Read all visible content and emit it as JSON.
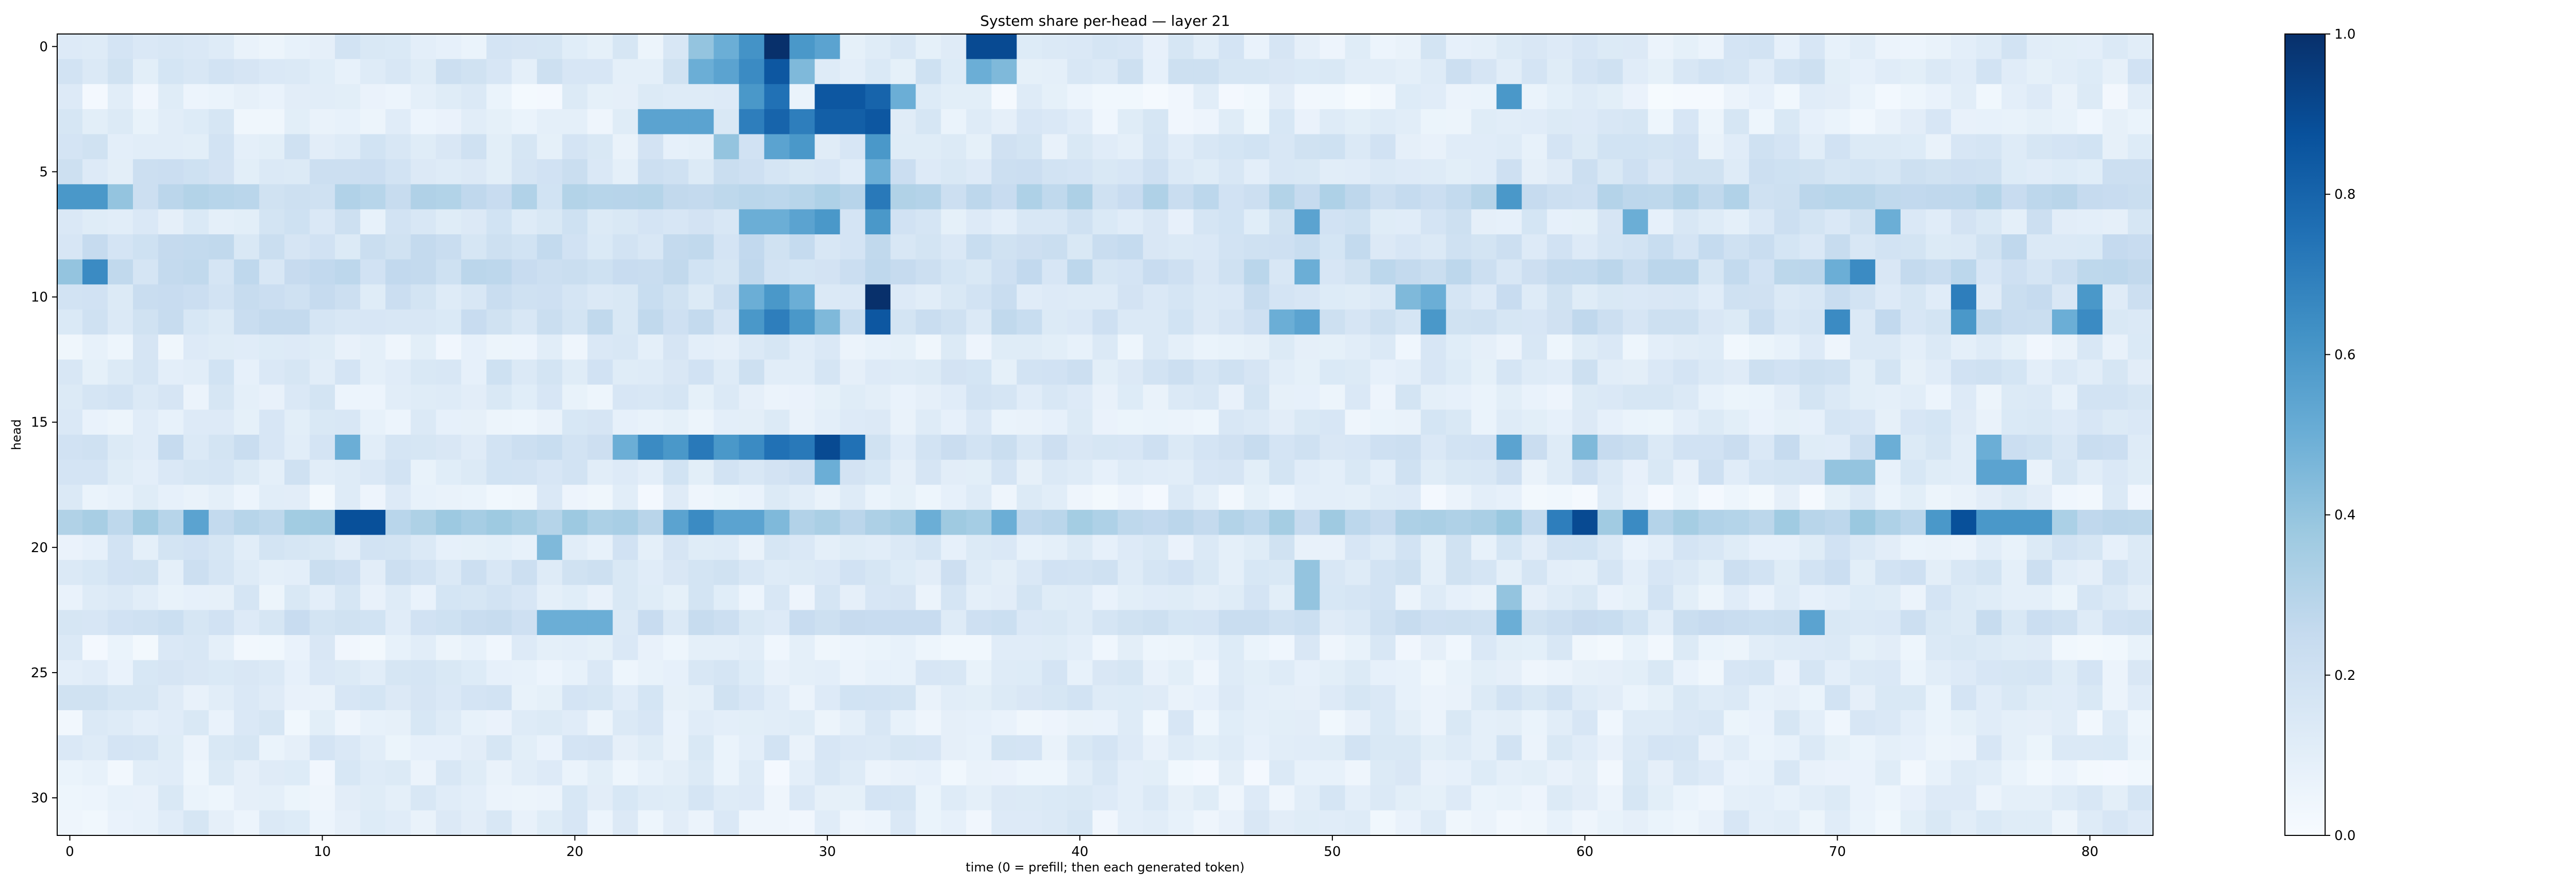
{
  "chart_data": {
    "type": "heatmap",
    "title": "System share per-head — layer 21",
    "xlabel": "time (0 = prefill; then each generated token)",
    "ylabel": "head",
    "n_cols": 84,
    "n_rows": 32,
    "xlim": [
      -0.5,
      82.5
    ],
    "ylim": [
      31.5,
      -0.5
    ],
    "x_ticks": [
      0,
      10,
      20,
      30,
      40,
      50,
      60,
      70,
      80
    ],
    "y_ticks": [
      0,
      5,
      10,
      15,
      20,
      25,
      30
    ],
    "colormap": "Blues",
    "colorbar": {
      "min": 0.0,
      "max": 1.0,
      "ticks": [
        "0.0",
        "0.2",
        "0.4",
        "0.6",
        "0.8",
        "1.0"
      ]
    },
    "colors": {
      "low": "#f7fbff",
      "high": "#08306b",
      "axis": "#000000"
    },
    "base": [
      0.12,
      0.15,
      0.08,
      0.1,
      0.14,
      0.16,
      0.26,
      0.15,
      0.2,
      0.22,
      0.18,
      0.2,
      0.1,
      0.15,
      0.12,
      0.11,
      0.18,
      0.14,
      0.08,
      0.32,
      0.13,
      0.16,
      0.12,
      0.18,
      0.09,
      0.11,
      0.13,
      0.1,
      0.12,
      0.09,
      0.11,
      0.1
    ],
    "hot_cells": [
      [
        0,
        27,
        0.62
      ],
      [
        0,
        28,
        1.0
      ],
      [
        0,
        29,
        0.6
      ],
      [
        0,
        30,
        0.55
      ],
      [
        0,
        36,
        0.9
      ],
      [
        0,
        37,
        0.9
      ],
      [
        0,
        26,
        0.5
      ],
      [
        0,
        25,
        0.4
      ],
      [
        1,
        27,
        0.65
      ],
      [
        1,
        28,
        0.85
      ],
      [
        1,
        26,
        0.55
      ],
      [
        1,
        25,
        0.5
      ],
      [
        1,
        29,
        0.45
      ],
      [
        1,
        36,
        0.5
      ],
      [
        1,
        37,
        0.45
      ],
      [
        2,
        28,
        0.75
      ],
      [
        2,
        30,
        0.85
      ],
      [
        2,
        31,
        0.85
      ],
      [
        2,
        32,
        0.8
      ],
      [
        2,
        27,
        0.6
      ],
      [
        2,
        33,
        0.5
      ],
      [
        2,
        57,
        0.6
      ],
      [
        3,
        28,
        0.8
      ],
      [
        3,
        29,
        0.7
      ],
      [
        3,
        30,
        0.82
      ],
      [
        3,
        31,
        0.82
      ],
      [
        3,
        32,
        0.85
      ],
      [
        3,
        23,
        0.55
      ],
      [
        3,
        24,
        0.55
      ],
      [
        3,
        25,
        0.55
      ],
      [
        3,
        27,
        0.7
      ],
      [
        4,
        28,
        0.55
      ],
      [
        4,
        29,
        0.6
      ],
      [
        4,
        32,
        0.6
      ],
      [
        4,
        26,
        0.4
      ],
      [
        5,
        32,
        0.5
      ],
      [
        6,
        0,
        0.6
      ],
      [
        6,
        1,
        0.6
      ],
      [
        6,
        2,
        0.4
      ],
      [
        6,
        32,
        0.72
      ],
      [
        6,
        57,
        0.6
      ],
      [
        7,
        27,
        0.5
      ],
      [
        7,
        28,
        0.5
      ],
      [
        7,
        29,
        0.55
      ],
      [
        7,
        30,
        0.6
      ],
      [
        7,
        32,
        0.6
      ],
      [
        7,
        49,
        0.55
      ],
      [
        7,
        62,
        0.5
      ],
      [
        7,
        72,
        0.5
      ],
      [
        9,
        1,
        0.65
      ],
      [
        9,
        0,
        0.4
      ],
      [
        9,
        49,
        0.5
      ],
      [
        9,
        70,
        0.5
      ],
      [
        9,
        71,
        0.65
      ],
      [
        10,
        32,
        1.0
      ],
      [
        10,
        28,
        0.6
      ],
      [
        10,
        27,
        0.5
      ],
      [
        10,
        29,
        0.5
      ],
      [
        10,
        75,
        0.7
      ],
      [
        10,
        80,
        0.6
      ],
      [
        10,
        54,
        0.5
      ],
      [
        10,
        53,
        0.45
      ],
      [
        11,
        32,
        0.85
      ],
      [
        11,
        27,
        0.6
      ],
      [
        11,
        28,
        0.7
      ],
      [
        11,
        29,
        0.6
      ],
      [
        11,
        30,
        0.45
      ],
      [
        11,
        48,
        0.5
      ],
      [
        11,
        49,
        0.55
      ],
      [
        11,
        54,
        0.6
      ],
      [
        11,
        70,
        0.65
      ],
      [
        11,
        75,
        0.6
      ],
      [
        11,
        80,
        0.65
      ],
      [
        11,
        79,
        0.5
      ],
      [
        16,
        11,
        0.5
      ],
      [
        16,
        22,
        0.5
      ],
      [
        16,
        23,
        0.65
      ],
      [
        16,
        24,
        0.6
      ],
      [
        16,
        25,
        0.72
      ],
      [
        16,
        26,
        0.6
      ],
      [
        16,
        27,
        0.65
      ],
      [
        16,
        28,
        0.75
      ],
      [
        16,
        29,
        0.72
      ],
      [
        16,
        30,
        0.9
      ],
      [
        16,
        31,
        0.75
      ],
      [
        16,
        57,
        0.55
      ],
      [
        16,
        60,
        0.45
      ],
      [
        16,
        72,
        0.5
      ],
      [
        16,
        76,
        0.5
      ],
      [
        17,
        30,
        0.5
      ],
      [
        17,
        76,
        0.55
      ],
      [
        17,
        77,
        0.55
      ],
      [
        17,
        70,
        0.4
      ],
      [
        17,
        71,
        0.4
      ],
      [
        19,
        11,
        0.88
      ],
      [
        19,
        12,
        0.88
      ],
      [
        19,
        5,
        0.55
      ],
      [
        19,
        24,
        0.55
      ],
      [
        19,
        25,
        0.65
      ],
      [
        19,
        26,
        0.55
      ],
      [
        19,
        27,
        0.55
      ],
      [
        19,
        28,
        0.45
      ],
      [
        19,
        34,
        0.5
      ],
      [
        19,
        37,
        0.5
      ],
      [
        19,
        59,
        0.7
      ],
      [
        19,
        60,
        0.9
      ],
      [
        19,
        62,
        0.65
      ],
      [
        19,
        74,
        0.6
      ],
      [
        19,
        75,
        0.88
      ],
      [
        19,
        76,
        0.6
      ],
      [
        19,
        77,
        0.6
      ],
      [
        19,
        78,
        0.6
      ],
      [
        20,
        19,
        0.45
      ],
      [
        21,
        49,
        0.4
      ],
      [
        22,
        49,
        0.4
      ],
      [
        22,
        57,
        0.4
      ],
      [
        23,
        19,
        0.5
      ],
      [
        23,
        20,
        0.5
      ],
      [
        23,
        21,
        0.5
      ],
      [
        23,
        57,
        0.5
      ],
      [
        23,
        69,
        0.55
      ]
    ]
  }
}
